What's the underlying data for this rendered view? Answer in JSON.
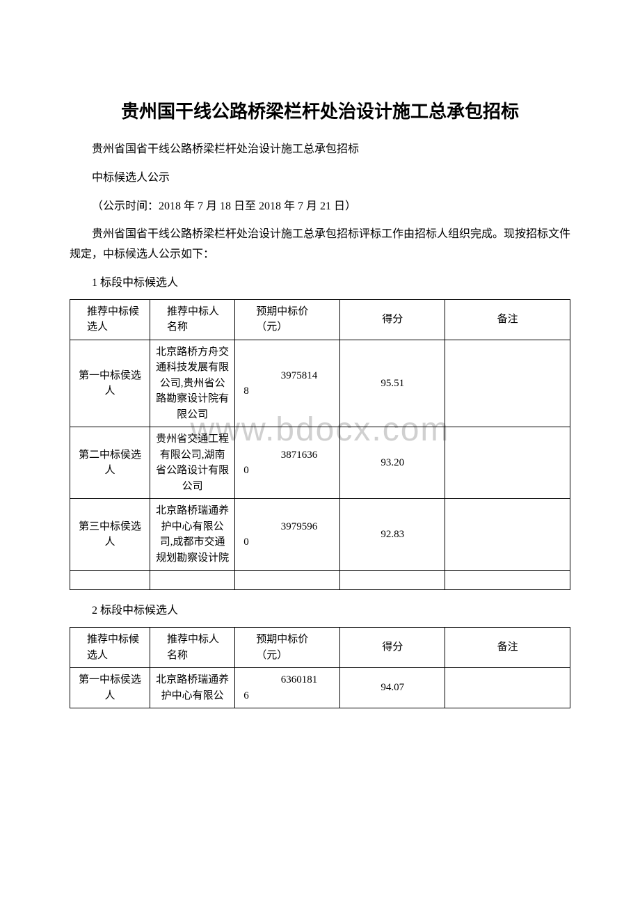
{
  "title": "贵州国干线公路桥梁栏杆处治设计施工总承包招标",
  "subtitle": "贵州省国省干线公路桥梁栏杆处治设计施工总承包招标",
  "notice_type": "中标候选人公示",
  "notice_period": "（公示时间：2018 年 7 月 18 日至 2018 年 7 月 21 日）",
  "intro": "贵州省国省干线公路桥梁栏杆处治设计施工总承包招标评标工作由招标人组织完成。现按招标文件规定，中标候选人公示如下：",
  "watermark": "www.bdocx.com",
  "headers": {
    "candidate": "推荐中标候选人",
    "name": "推荐中标人名称",
    "price": "预期中标价（元）",
    "score": "得分",
    "remark": "备注"
  },
  "section1": {
    "label": "1 标段中标候选人",
    "rows": [
      {
        "candidate": "第一中标侯选人",
        "name": "北京路桥方舟交通科技发展有限公司,贵州省公路勘察设计院有限公司",
        "price": "39758148",
        "price_line1": "3975814",
        "price_line2": "8",
        "score": "95.51",
        "remark": ""
      },
      {
        "candidate": "第二中标侯选人",
        "name": "贵州省交通工程有限公司,湖南省公路设计有限公司",
        "price": "38716360",
        "price_line1": "3871636",
        "price_line2": "0",
        "score": "93.20",
        "remark": ""
      },
      {
        "candidate": "第三中标侯选人",
        "name": "北京路桥瑞通养护中心有限公司,成都市交通规划勘察设计院",
        "price": "39795960",
        "price_line1": "3979596",
        "price_line2": "0",
        "score": "92.83",
        "remark": ""
      }
    ]
  },
  "section2": {
    "label": "2 标段中标候选人",
    "rows": [
      {
        "candidate": "第一中标侯选人",
        "name": "北京路桥瑞通养护中心有限公",
        "price": "63601816",
        "price_line1": "6360181",
        "price_line2": "6",
        "score": "94.07",
        "remark": ""
      }
    ]
  }
}
